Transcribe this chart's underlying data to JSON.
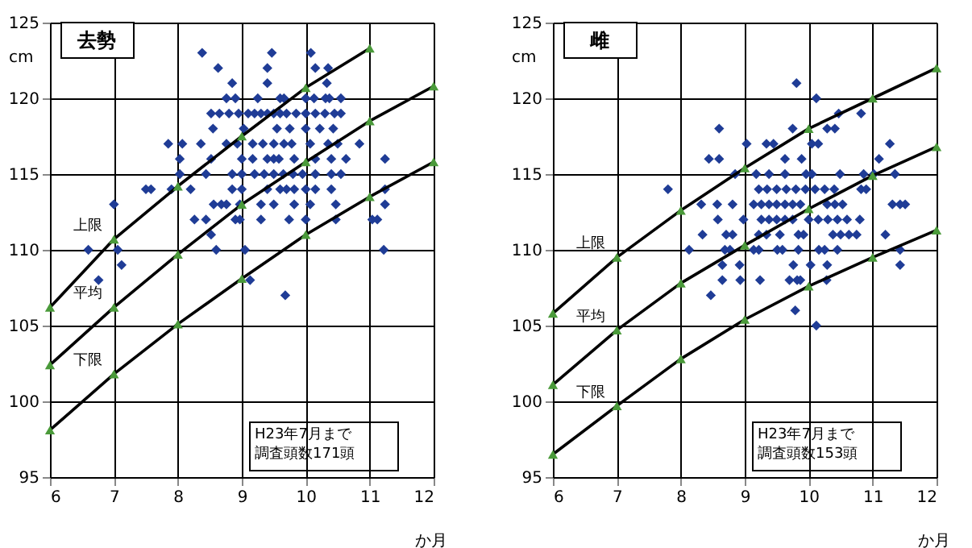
{
  "chart_data": [
    {
      "type": "scatter",
      "title": "去勢",
      "xlabel": "か月",
      "ylabel": "cm",
      "xlim": [
        6,
        12
      ],
      "ylim": [
        95,
        125
      ],
      "xticks": [
        6,
        7,
        8,
        9,
        10,
        11,
        12
      ],
      "yticks": [
        95,
        100,
        105,
        110,
        115,
        120,
        125
      ],
      "grid": true,
      "annotations": [
        "上限",
        "平均",
        "下限",
        "H23年7月まで",
        "調査頭数171頭"
      ],
      "series": [
        {
          "marker": "diamond",
          "color": "#1f3c96",
          "x": [
            8.38,
            9.47,
            10.08,
            8.63,
            9.4,
            10.15,
            10.35,
            8.85,
            9.4,
            10.33,
            8.76,
            8.9,
            9.25,
            9.6,
            9.66,
            10.0,
            10.13,
            10.31,
            10.37,
            10.55,
            8.52,
            8.65,
            8.8,
            8.95,
            9.1,
            9.2,
            9.3,
            9.4,
            9.5,
            9.6,
            9.7,
            9.85,
            10.0,
            10.15,
            10.3,
            10.45,
            10.55,
            8.55,
            9.03,
            9.55,
            9.75,
            10.0,
            10.22,
            10.43,
            7.85,
            8.07,
            8.36,
            8.76,
            8.93,
            9.17,
            9.33,
            9.5,
            9.66,
            9.78,
            10.07,
            10.35,
            10.5,
            10.84,
            8.03,
            8.52,
            9.0,
            9.17,
            9.4,
            9.5,
            9.58,
            9.82,
            10.15,
            10.4,
            10.63,
            11.24,
            8.03,
            8.44,
            8.85,
            9.0,
            9.2,
            9.35,
            9.5,
            9.65,
            9.8,
            9.95,
            10.15,
            10.4,
            10.55,
            7.5,
            7.58,
            7.9,
            8.2,
            8.85,
            9.0,
            9.4,
            9.6,
            9.7,
            9.82,
            10.0,
            10.15,
            10.4,
            11.24,
            7.0,
            8.56,
            8.68,
            8.76,
            8.97,
            9.3,
            9.5,
            9.82,
            10.07,
            10.47,
            11.24,
            8.26,
            8.44,
            8.9,
            8.97,
            9.3,
            9.74,
            10.0,
            10.47,
            11.04,
            11.12,
            8.52,
            6.6,
            7.06,
            8.6,
            9.05,
            11.22,
            7.12,
            6.76,
            9.13,
            9.68
          ],
          "values": [
            123,
            123,
            123,
            122,
            122,
            122,
            122,
            121,
            121,
            121,
            120,
            120,
            120,
            120,
            120,
            120,
            120,
            120,
            120,
            120,
            119,
            119,
            119,
            119,
            119,
            119,
            119,
            119,
            119,
            119,
            119,
            119,
            119,
            119,
            119,
            119,
            119,
            118,
            118,
            118,
            118,
            118,
            118,
            118,
            117,
            117,
            117,
            117,
            117,
            117,
            117,
            117,
            117,
            117,
            117,
            117,
            117,
            117,
            116,
            116,
            116,
            116,
            116,
            116,
            116,
            116,
            116,
            116,
            116,
            116,
            115,
            115,
            115,
            115,
            115,
            115,
            115,
            115,
            115,
            115,
            115,
            115,
            115,
            114,
            114,
            114,
            114,
            114,
            114,
            114,
            114,
            114,
            114,
            114,
            114,
            114,
            114,
            113,
            113,
            113,
            113,
            113,
            113,
            113,
            113,
            113,
            113,
            113,
            112,
            112,
            112,
            112,
            112,
            112,
            112,
            112,
            112,
            112,
            111,
            110,
            110,
            110,
            110,
            110,
            109,
            108,
            108,
            107
          ]
        },
        {
          "type": "line",
          "marker": "none",
          "color": "#000000",
          "x": [
            6,
            7,
            8,
            9,
            10,
            11
          ],
          "values": [
            106.2,
            110.7,
            114.2,
            117.5,
            120.7,
            123.3
          ]
        },
        {
          "type": "line",
          "marker": "none",
          "color": "#000000",
          "x": [
            6,
            7,
            8,
            9,
            10,
            11,
            12
          ],
          "values": [
            102.4,
            106.2,
            109.7,
            113.0,
            115.8,
            118.5,
            120.8
          ]
        },
        {
          "type": "line",
          "marker": "none",
          "color": "#000000",
          "x": [
            6,
            7,
            8,
            9,
            10,
            11,
            12
          ],
          "values": [
            98.1,
            101.8,
            105.1,
            108.1,
            111.0,
            113.5,
            115.8
          ]
        },
        {
          "type": "scatter",
          "marker": "triangle",
          "color": "#4a9a3a",
          "x": [
            6,
            7,
            8,
            9,
            10,
            11,
            6,
            7,
            8,
            9,
            10,
            11,
            12,
            6,
            7,
            8,
            9,
            10,
            11,
            12
          ],
          "values": [
            106.2,
            110.7,
            114.2,
            117.5,
            120.7,
            123.3,
            102.4,
            106.2,
            109.7,
            113.0,
            115.8,
            118.5,
            120.8,
            98.1,
            101.8,
            105.1,
            108.1,
            111.0,
            113.5,
            115.8
          ]
        }
      ]
    },
    {
      "type": "scatter",
      "title": "雌",
      "xlabel": "か月",
      "ylabel": "cm",
      "xlim": [
        6,
        12
      ],
      "ylim": [
        95,
        125
      ],
      "xticks": [
        6,
        7,
        8,
        9,
        10,
        11,
        12
      ],
      "yticks": [
        95,
        100,
        105,
        110,
        115,
        120,
        125
      ],
      "grid": true,
      "annotations": [
        "上限",
        "平均",
        "下限",
        "H23年7月まで",
        "調査頭数153頭"
      ],
      "series": [
        {
          "marker": "diamond",
          "color": "#1f3c96",
          "x": [
            9.81,
            10.12,
            10.47,
            10.82,
            8.6,
            9.75,
            10.29,
            10.41,
            9.03,
            9.34,
            9.45,
            10.05,
            10.15,
            11.27,
            8.44,
            8.6,
            9.63,
            9.89,
            11.1,
            8.85,
            9.18,
            9.38,
            9.63,
            9.96,
            10.05,
            10.49,
            10.86,
            11.02,
            11.35,
            7.8,
            9.22,
            9.35,
            9.5,
            9.65,
            9.8,
            9.95,
            10.1,
            10.25,
            10.4,
            10.82,
            10.9,
            8.32,
            8.57,
            8.81,
            9.14,
            9.26,
            9.38,
            9.5,
            9.63,
            9.75,
            9.87,
            10.29,
            10.41,
            10.53,
            11.31,
            11.43,
            11.51,
            8.58,
            8.98,
            9.26,
            9.38,
            9.5,
            9.63,
            9.75,
            10.0,
            10.15,
            10.3,
            10.45,
            10.6,
            10.8,
            8.34,
            8.71,
            8.81,
            9.22,
            9.34,
            9.55,
            9.84,
            9.92,
            10.38,
            10.5,
            10.63,
            10.75,
            11.2,
            8.13,
            8.69,
            8.77,
            9.14,
            9.22,
            9.51,
            9.59,
            9.84,
            10.16,
            10.25,
            10.45,
            11.43,
            8.65,
            8.92,
            9.76,
            10.03,
            10.29,
            11.43,
            8.65,
            8.93,
            9.24,
            9.7,
            9.82,
            9.87,
            10.28,
            8.47,
            9.79,
            10.12
          ],
          "values": [
            121,
            120,
            119,
            119,
            118,
            118,
            118,
            118,
            117,
            117,
            117,
            117,
            117,
            117,
            116,
            116,
            116,
            116,
            116,
            115,
            115,
            115,
            115,
            115,
            115,
            115,
            115,
            115,
            115,
            114,
            114,
            114,
            114,
            114,
            114,
            114,
            114,
            114,
            114,
            114,
            114,
            113,
            113,
            113,
            113,
            113,
            113,
            113,
            113,
            113,
            113,
            113,
            113,
            113,
            113,
            113,
            113,
            112,
            112,
            112,
            112,
            112,
            112,
            112,
            112,
            112,
            112,
            112,
            112,
            112,
            111,
            111,
            111,
            111,
            111,
            111,
            111,
            111,
            111,
            111,
            111,
            111,
            111,
            110,
            110,
            110,
            110,
            110,
            110,
            110,
            110,
            110,
            110,
            110,
            110,
            109,
            109,
            109,
            109,
            109,
            109,
            108,
            108,
            108,
            108,
            108,
            108,
            108,
            107,
            106,
            105
          ]
        },
        {
          "type": "line",
          "marker": "none",
          "color": "#000000",
          "x": [
            6,
            7,
            8,
            9,
            10,
            11,
            12
          ],
          "values": [
            105.8,
            109.5,
            112.6,
            115.4,
            118.0,
            120.0,
            122.0
          ]
        },
        {
          "type": "line",
          "marker": "none",
          "color": "#000000",
          "x": [
            6,
            7,
            8,
            9,
            10,
            11,
            12
          ],
          "values": [
            101.1,
            104.7,
            107.8,
            110.3,
            112.7,
            114.9,
            116.8
          ]
        },
        {
          "type": "line",
          "marker": "none",
          "color": "#000000",
          "x": [
            6,
            7,
            8,
            9,
            10,
            11,
            12
          ],
          "values": [
            96.5,
            99.7,
            102.8,
            105.4,
            107.6,
            109.5,
            111.3
          ]
        },
        {
          "type": "scatter",
          "marker": "triangle",
          "color": "#4a9a3a",
          "x": [
            6,
            7,
            8,
            9,
            10,
            11,
            12,
            6,
            7,
            8,
            9,
            10,
            11,
            12,
            6,
            7,
            8,
            9,
            10,
            11,
            12
          ],
          "values": [
            105.8,
            109.5,
            112.6,
            115.4,
            118.0,
            120.0,
            122.0,
            101.1,
            104.7,
            107.8,
            110.3,
            112.7,
            114.9,
            116.8,
            96.5,
            99.7,
            102.8,
            105.4,
            107.6,
            109.5,
            111.3
          ]
        }
      ]
    }
  ]
}
